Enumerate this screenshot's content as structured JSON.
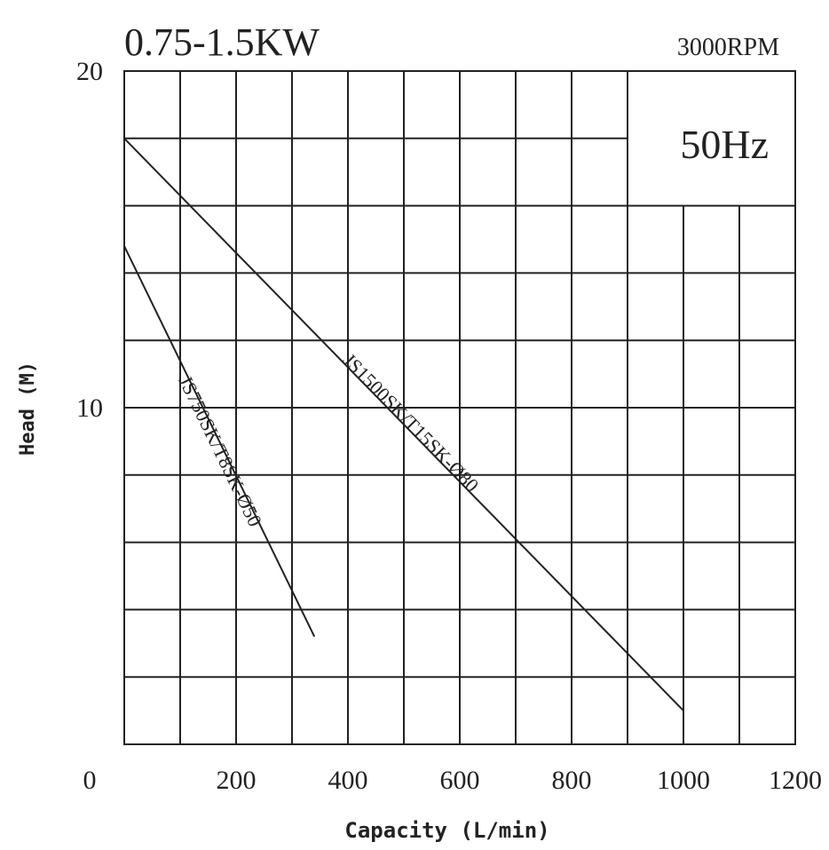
{
  "chart_data": {
    "type": "line",
    "title": "0.75-1.5KW",
    "speed_label": "3000RPM",
    "frequency_label": "50Hz",
    "xlabel": "Capacity (L/min)",
    "ylabel": "Head (M)",
    "xlim": [
      0,
      1200
    ],
    "ylim": [
      0,
      20
    ],
    "x_ticks": [
      "0",
      "200",
      "400",
      "600",
      "800",
      "1000",
      "1200"
    ],
    "y_ticks": [
      "0",
      "10",
      "20"
    ],
    "grid": true,
    "series": [
      {
        "name": "JS750SK/T8SK-Ø50",
        "x": [
          0,
          340
        ],
        "y": [
          14.8,
          3.2
        ],
        "color": "#222222"
      },
      {
        "name": "JS1500SK/T15SK-Ø80",
        "x": [
          0,
          1000
        ],
        "y": [
          18.0,
          1.0
        ],
        "color": "#222222"
      }
    ]
  }
}
